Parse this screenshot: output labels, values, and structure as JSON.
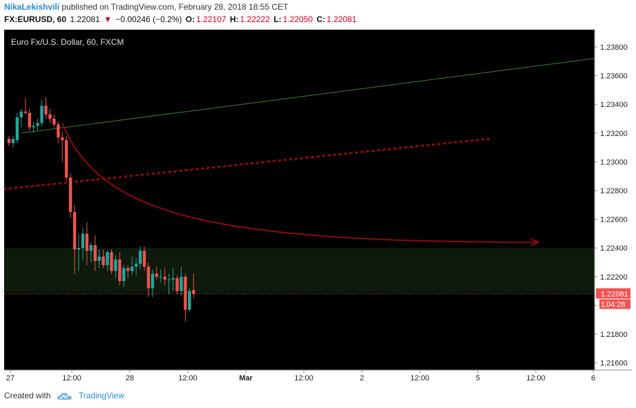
{
  "header": {
    "author": "NikaLekishvili",
    "published_text": "published on TradingView.com, February 28, 2018 18:55 CET",
    "symbol": "FX:EURUSD, 60",
    "last": "1.22081",
    "change_arrow": "▼",
    "change": "−0.00246 (−0.2%)",
    "o_label": "O:",
    "o_value": "1.22107",
    "h_label": "H:",
    "h_value": "1.22222",
    "l_label": "L:",
    "l_value": "1.22050",
    "c_label": "C:",
    "c_value": "1.22081"
  },
  "chart_data": {
    "type": "candlestick",
    "title": "Euro Fx/U.S. Dollar, 60, FXCM",
    "ylim": [
      1.2155,
      1.2392
    ],
    "y_ticks": [
      "1.23800",
      "1.23600",
      "1.23400",
      "1.23200",
      "1.23000",
      "1.22800",
      "1.22600",
      "1.22400",
      "1.22200",
      "1.22000",
      "1.21800",
      "1.21600"
    ],
    "x_ticks": [
      "27",
      "12:00",
      "28",
      "12:00",
      "Mar",
      "12:00",
      "2",
      "12:00",
      "5",
      "12:00",
      "6"
    ],
    "last_price_label": "1.22081",
    "countdown_label": "04:28",
    "colors": {
      "up": "#26a69a",
      "down": "#ef5350",
      "background": "#000000",
      "zone": "#0e1a0b",
      "trend": "#3f7f2f",
      "dotted": "#8b0b0b",
      "arrow": "#8b0b0b",
      "price_line": "#f57c00"
    },
    "zone": {
      "top": 1.224,
      "bottom": 1.2209
    },
    "grid": false,
    "candles": [
      {
        "o": 1.2316,
        "h": 1.2318,
        "l": 1.2311,
        "c": 1.2313
      },
      {
        "o": 1.2313,
        "h": 1.2318,
        "l": 1.231,
        "c": 1.2316
      },
      {
        "o": 1.2315,
        "h": 1.2334,
        "l": 1.2313,
        "c": 1.2331
      },
      {
        "o": 1.2331,
        "h": 1.2337,
        "l": 1.2324,
        "c": 1.2335
      },
      {
        "o": 1.2335,
        "h": 1.2344,
        "l": 1.2333,
        "c": 1.2334
      },
      {
        "o": 1.2334,
        "h": 1.2337,
        "l": 1.2322,
        "c": 1.2324
      },
      {
        "o": 1.2324,
        "h": 1.2328,
        "l": 1.232,
        "c": 1.2325
      },
      {
        "o": 1.2325,
        "h": 1.233,
        "l": 1.2322,
        "c": 1.2327
      },
      {
        "o": 1.2327,
        "h": 1.2343,
        "l": 1.2325,
        "c": 1.2339
      },
      {
        "o": 1.2339,
        "h": 1.2345,
        "l": 1.233,
        "c": 1.2333
      },
      {
        "o": 1.2333,
        "h": 1.2337,
        "l": 1.2327,
        "c": 1.233
      },
      {
        "o": 1.233,
        "h": 1.2333,
        "l": 1.2324,
        "c": 1.2326
      },
      {
        "o": 1.2326,
        "h": 1.2328,
        "l": 1.2313,
        "c": 1.2317
      },
      {
        "o": 1.2317,
        "h": 1.2321,
        "l": 1.23,
        "c": 1.2315
      },
      {
        "o": 1.2315,
        "h": 1.2318,
        "l": 1.2287,
        "c": 1.2289
      },
      {
        "o": 1.2289,
        "h": 1.2292,
        "l": 1.2261,
        "c": 1.2265
      },
      {
        "o": 1.2265,
        "h": 1.227,
        "l": 1.2222,
        "c": 1.2239
      },
      {
        "o": 1.2239,
        "h": 1.225,
        "l": 1.2224,
        "c": 1.224
      },
      {
        "o": 1.224,
        "h": 1.2254,
        "l": 1.2232,
        "c": 1.225
      },
      {
        "o": 1.225,
        "h": 1.2258,
        "l": 1.2228,
        "c": 1.2238
      },
      {
        "o": 1.2238,
        "h": 1.2244,
        "l": 1.223,
        "c": 1.2242
      },
      {
        "o": 1.2242,
        "h": 1.2249,
        "l": 1.2224,
        "c": 1.2231
      },
      {
        "o": 1.2231,
        "h": 1.2239,
        "l": 1.2226,
        "c": 1.2234
      },
      {
        "o": 1.2234,
        "h": 1.2239,
        "l": 1.2226,
        "c": 1.2228
      },
      {
        "o": 1.2228,
        "h": 1.2238,
        "l": 1.2224,
        "c": 1.2237
      },
      {
        "o": 1.2237,
        "h": 1.2239,
        "l": 1.2222,
        "c": 1.2224
      },
      {
        "o": 1.2224,
        "h": 1.2235,
        "l": 1.2219,
        "c": 1.2232
      },
      {
        "o": 1.2232,
        "h": 1.2237,
        "l": 1.2214,
        "c": 1.2217
      },
      {
        "o": 1.2217,
        "h": 1.2228,
        "l": 1.2213,
        "c": 1.2226
      },
      {
        "o": 1.2226,
        "h": 1.2228,
        "l": 1.2219,
        "c": 1.2224
      },
      {
        "o": 1.2224,
        "h": 1.2234,
        "l": 1.2221,
        "c": 1.2227
      },
      {
        "o": 1.2227,
        "h": 1.2233,
        "l": 1.2221,
        "c": 1.2229
      },
      {
        "o": 1.2229,
        "h": 1.2241,
        "l": 1.2225,
        "c": 1.2238
      },
      {
        "o": 1.2238,
        "h": 1.2241,
        "l": 1.2224,
        "c": 1.2227
      },
      {
        "o": 1.2227,
        "h": 1.223,
        "l": 1.2206,
        "c": 1.2212
      },
      {
        "o": 1.2212,
        "h": 1.2225,
        "l": 1.2206,
        "c": 1.2222
      },
      {
        "o": 1.2222,
        "h": 1.2227,
        "l": 1.2218,
        "c": 1.222
      },
      {
        "o": 1.222,
        "h": 1.2225,
        "l": 1.2216,
        "c": 1.222
      },
      {
        "o": 1.222,
        "h": 1.2226,
        "l": 1.2214,
        "c": 1.2218
      },
      {
        "o": 1.2218,
        "h": 1.2222,
        "l": 1.2208,
        "c": 1.2218
      },
      {
        "o": 1.2218,
        "h": 1.2226,
        "l": 1.221,
        "c": 1.2219
      },
      {
        "o": 1.2219,
        "h": 1.2221,
        "l": 1.2208,
        "c": 1.221
      },
      {
        "o": 1.221,
        "h": 1.2227,
        "l": 1.2207,
        "c": 1.222
      },
      {
        "o": 1.222,
        "h": 1.2222,
        "l": 1.2189,
        "c": 1.2197
      },
      {
        "o": 1.2197,
        "h": 1.2212,
        "l": 1.2196,
        "c": 1.221
      },
      {
        "o": 1.22107,
        "h": 1.22222,
        "l": 1.2205,
        "c": 1.22081
      }
    ]
  },
  "footer": {
    "created_with": "Created with",
    "brand": "TradingView"
  }
}
